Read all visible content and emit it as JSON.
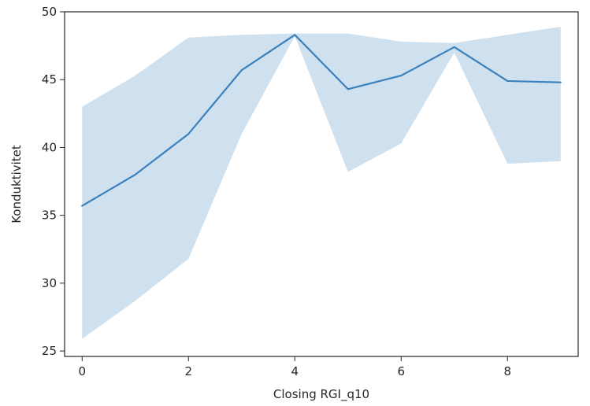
{
  "chart_data": {
    "type": "line",
    "title": "",
    "xlabel": "Closing RGI_q10",
    "ylabel": "Konduktivitet",
    "xlim": [
      -0.33,
      9.33
    ],
    "ylim": [
      24.6,
      50.0
    ],
    "xticks": [
      0,
      2,
      4,
      6,
      8
    ],
    "yticks": [
      25,
      30,
      35,
      40,
      45,
      50
    ],
    "grid": false,
    "legend": "none",
    "line_color": "#3a80bc",
    "band_color": "#cfe0ee",
    "x": [
      0,
      1,
      2,
      3,
      4,
      5,
      6,
      7,
      8,
      9
    ],
    "series": [
      {
        "values": [
          35.7,
          38.0,
          41.0,
          45.7,
          48.3,
          44.3,
          45.3,
          47.4,
          44.9,
          44.8
        ],
        "lower": [
          25.9,
          28.7,
          31.8,
          41.0,
          48.2,
          38.2,
          40.3,
          47.0,
          38.8,
          39.0
        ],
        "upper": [
          43.0,
          45.3,
          48.1,
          48.3,
          48.4,
          48.4,
          47.8,
          47.7,
          48.3,
          48.9
        ]
      }
    ]
  }
}
